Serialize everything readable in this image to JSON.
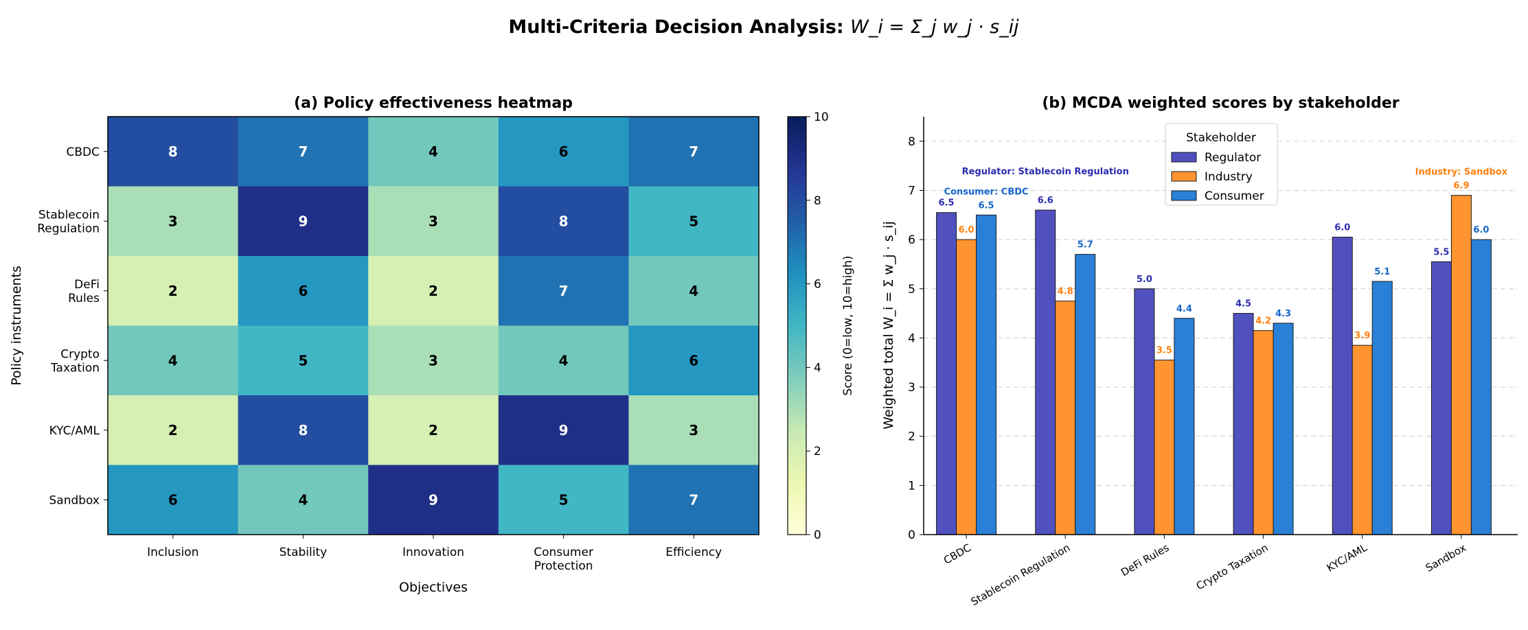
{
  "suptitle": "Multi-Criteria Decision Analysis: ",
  "suptitle_formula": "W_i = Σ_j w_j · s_ij",
  "chart_data": [
    {
      "type": "heatmap",
      "title": "(a) Policy effectiveness heatmap",
      "xlabel": "Objectives",
      "ylabel": "Policy instruments",
      "x_categories": [
        "Inclusion",
        "Stability",
        "Innovation",
        "Consumer\nProtection",
        "Efficiency"
      ],
      "y_categories": [
        "CBDC",
        "Stablecoin\nRegulation",
        "DeFi\nRules",
        "Crypto\nTaxation",
        "KYC/AML",
        "Sandbox"
      ],
      "values": [
        [
          8,
          7,
          4,
          6,
          7
        ],
        [
          3,
          9,
          3,
          8,
          5
        ],
        [
          2,
          6,
          2,
          7,
          4
        ],
        [
          4,
          5,
          3,
          4,
          6
        ],
        [
          2,
          8,
          2,
          9,
          3
        ],
        [
          6,
          4,
          9,
          5,
          7
        ]
      ],
      "colormap": "YlGnBu",
      "colorbar": {
        "label": "Score (0=low, 10=high)",
        "range": [
          0,
          10
        ],
        "ticks": [
          "0",
          "2",
          "4",
          "6",
          "8",
          "10"
        ]
      }
    },
    {
      "type": "bar",
      "title": "(b) MCDA weighted scores by stakeholder",
      "xlabel": "",
      "ylabel": "Weighted total W_i = Σ w_j · s_ij",
      "ylim": [
        0,
        8.5
      ],
      "yticks": [
        "0",
        "1",
        "2",
        "3",
        "4",
        "5",
        "6",
        "7",
        "8"
      ],
      "grid": "y dashed",
      "categories": [
        "CBDC",
        "Stablecoin Regulation",
        "DeFi Rules",
        "Crypto Taxation",
        "KYC/AML",
        "Sandbox"
      ],
      "legend": {
        "title": "Stakeholder",
        "placement": "upper-center"
      },
      "series": [
        {
          "name": "Regulator",
          "color": "#5050bf",
          "label_color": "#2b2bb0",
          "values": [
            6.55,
            6.6,
            5.0,
            4.5,
            6.05,
            5.55
          ],
          "labels": [
            "6.5",
            "6.6",
            "5.0",
            "4.5",
            "6.0",
            "5.5"
          ]
        },
        {
          "name": "Industry",
          "color": "#ff9430",
          "label_color": "#ff7f0e",
          "values": [
            6.0,
            4.75,
            3.55,
            4.15,
            3.85,
            6.9
          ],
          "labels": [
            "6.0",
            "4.8",
            "3.5",
            "4.2",
            "3.9",
            "6.9"
          ]
        },
        {
          "name": "Consumer",
          "color": "#2a7fd6",
          "label_color": "#1565c8",
          "values": [
            6.5,
            5.7,
            4.4,
            4.3,
            5.15,
            6.0
          ],
          "labels": [
            "6.5",
            "5.7",
            "4.4",
            "4.3",
            "5.1",
            "6.0"
          ]
        }
      ],
      "annotations": [
        {
          "text": "Consumer: CBDC",
          "series": "Consumer",
          "category": "CBDC"
        },
        {
          "text": "Regulator: Stablecoin Regulation",
          "series": "Regulator",
          "category": "Stablecoin Regulation"
        },
        {
          "text": "Industry: Sandbox",
          "series": "Industry",
          "category": "Sandbox"
        }
      ]
    }
  ]
}
